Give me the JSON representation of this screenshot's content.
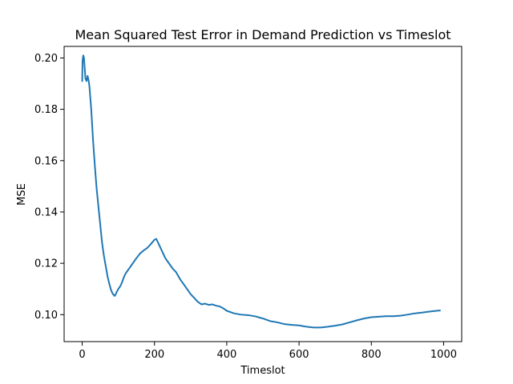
{
  "chart_data": {
    "type": "line",
    "title": "Mean Squared Test Error in Demand Prediction vs Timeslot",
    "xlabel": "Timeslot",
    "ylabel": "MSE",
    "xlim": [
      -50,
      1050
    ],
    "ylim": [
      0.0895,
      0.2045
    ],
    "xticks": [
      0,
      200,
      400,
      600,
      800,
      1000
    ],
    "yticks": [
      0.1,
      0.12,
      0.14,
      0.16,
      0.18,
      0.2
    ],
    "xtick_labels": [
      "0",
      "200",
      "400",
      "600",
      "800",
      "1000"
    ],
    "ytick_labels": [
      "0.10",
      "0.12",
      "0.14",
      "0.16",
      "0.18",
      "0.20"
    ],
    "grid": false,
    "line_color": "#1f77b4",
    "series": [
      {
        "x": [
          0,
          1,
          3,
          5,
          7,
          9,
          12,
          15,
          18,
          20,
          25,
          30,
          35,
          40,
          45,
          50,
          55,
          60,
          65,
          70,
          75,
          80,
          85,
          90,
          93,
          96,
          100,
          105,
          110,
          115,
          120,
          125,
          130,
          140,
          150,
          160,
          170,
          180,
          190,
          200,
          205,
          210,
          220,
          230,
          240,
          250,
          260,
          270,
          280,
          290,
          300,
          310,
          320,
          330,
          340,
          350,
          360,
          370,
          380,
          390,
          400,
          420,
          440,
          460,
          480,
          500,
          520,
          540,
          560,
          580,
          600,
          620,
          640,
          660,
          680,
          700,
          720,
          740,
          760,
          780,
          800,
          820,
          840,
          860,
          880,
          900,
          920,
          940,
          960,
          980,
          990
        ],
        "y": [
          0.191,
          0.199,
          0.201,
          0.2,
          0.196,
          0.192,
          0.191,
          0.193,
          0.191,
          0.189,
          0.18,
          0.168,
          0.158,
          0.149,
          0.142,
          0.135,
          0.128,
          0.123,
          0.119,
          0.115,
          0.112,
          0.1095,
          0.108,
          0.1073,
          0.108,
          0.109,
          0.11,
          0.111,
          0.1125,
          0.1145,
          0.116,
          0.117,
          0.118,
          0.12,
          0.122,
          0.1238,
          0.125,
          0.126,
          0.1275,
          0.1292,
          0.1295,
          0.128,
          0.125,
          0.122,
          0.12,
          0.118,
          0.1165,
          0.114,
          0.112,
          0.11,
          0.108,
          0.1065,
          0.105,
          0.104,
          0.1043,
          0.1038,
          0.104,
          0.1035,
          0.1032,
          0.1025,
          0.1015,
          0.1005,
          0.1,
          0.0998,
          0.0993,
          0.0985,
          0.0975,
          0.097,
          0.0963,
          0.096,
          0.0958,
          0.0953,
          0.095,
          0.095,
          0.0953,
          0.0957,
          0.0962,
          0.097,
          0.0978,
          0.0985,
          0.099,
          0.0992,
          0.0994,
          0.0994,
          0.0996,
          0.1,
          0.1005,
          0.1008,
          0.1012,
          0.1015,
          0.1016
        ]
      }
    ]
  }
}
